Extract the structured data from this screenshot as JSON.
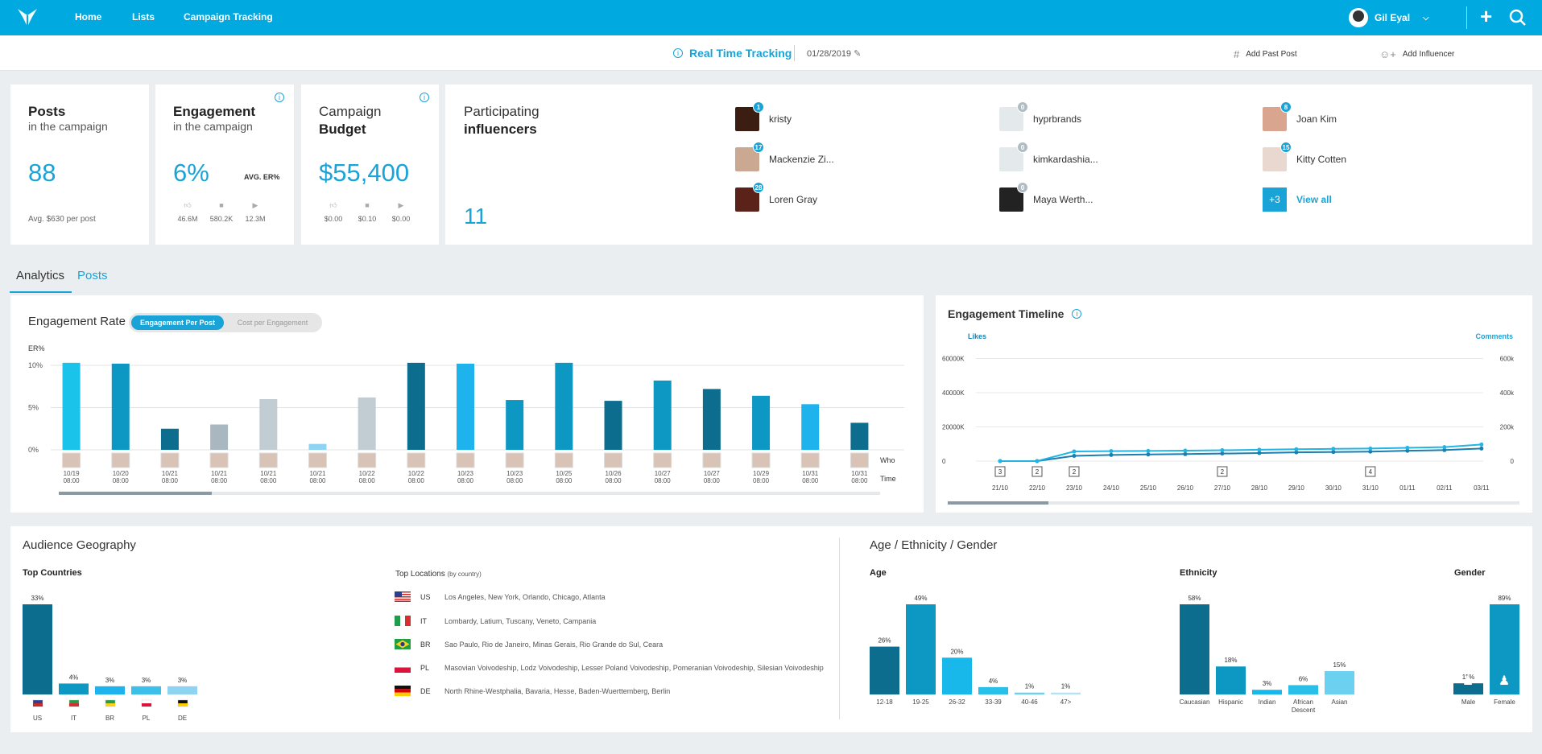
{
  "nav": {
    "links": [
      "Home",
      "Lists",
      "Campaign Tracking"
    ],
    "user_name": "Gil Eyal"
  },
  "subheader": {
    "title": "Real Time Tracking",
    "date": "01/28/2019",
    "add_past_post": "Add Past Post",
    "add_influencer": "Add Influencer"
  },
  "cards": {
    "posts": {
      "title": "Posts",
      "subtitle": "in the campaign",
      "value": "88",
      "note": "Avg. $630 per post"
    },
    "engagement": {
      "title": "Engagement",
      "subtitle": "in the campaign",
      "value": "6%",
      "tag": "AVG. ER%",
      "likes": "46.6M",
      "comments": "580.2K",
      "views": "12.3M"
    },
    "budget": {
      "title_top": "Campaign",
      "title_bold": "Budget",
      "value": "$55,400",
      "likes": "$0.00",
      "comments": "$0.10",
      "views": "$0.00"
    },
    "influencers": {
      "title_top": "Participating",
      "title_bold": "influencers",
      "count": "11",
      "people": [
        {
          "name": "kristy",
          "badge": "1"
        },
        {
          "name": "hyprbrands",
          "badge": "0"
        },
        {
          "name": "Joan Kim",
          "badge": "8"
        },
        {
          "name": "Mackenzie Zi...",
          "badge": "17"
        },
        {
          "name": "kimkardashia...",
          "badge": "0"
        },
        {
          "name": "Kitty Cotten",
          "badge": "15"
        },
        {
          "name": "Loren Gray",
          "badge": "28"
        },
        {
          "name": "Maya Werth...",
          "badge": "0"
        }
      ],
      "more": "+3",
      "view_all": "View all"
    }
  },
  "tabs": [
    "Analytics",
    "Posts"
  ],
  "engagement_rate": {
    "title": "Engagement Rate",
    "toggle_on": "Engagement Per Post",
    "toggle_off": "Cost per Engagement",
    "row_who": "Who",
    "row_time": "Time"
  },
  "engagement_timeline": {
    "title": "Engagement Timeline",
    "left_legend": "Likes",
    "right_legend": "Comments"
  },
  "geography": {
    "title": "Audience Geography",
    "top_countries": "Top Countries",
    "top_locations": "Top Locations",
    "by_country": "(by country)",
    "locations": [
      {
        "code": "US",
        "text": "Los Angeles, New York, Orlando, Chicago, Atlanta"
      },
      {
        "code": "IT",
        "text": "Lombardy, Latium, Tuscany, Veneto, Campania"
      },
      {
        "code": "BR",
        "text": "Sao Paulo, Rio de Janeiro, Minas Gerais, Rio Grande do Sul, Ceara"
      },
      {
        "code": "PL",
        "text": "Masovian Voivodeship, Lodz Voivodeship, Lesser Poland Voivodeship, Pomeranian Voivodeship, Silesian Voivodeship"
      },
      {
        "code": "DE",
        "text": "North Rhine-Westphalia, Bavaria, Hesse, Baden-Wuerttemberg, Berlin"
      }
    ]
  },
  "demographics": {
    "title": "Age / Ethnicity / Gender",
    "age_label": "Age",
    "ethnicity_label": "Ethnicity",
    "gender_label": "Gender"
  },
  "chart_data": [
    {
      "type": "bar",
      "title": "Engagement Rate",
      "ylabel": "ER%",
      "ylim": [
        0,
        10
      ],
      "y_ticks": [
        "0%",
        "5%",
        "10%"
      ],
      "categories": [
        "10/19",
        "10/20",
        "10/21",
        "10/21",
        "10/21",
        "10/21",
        "10/22",
        "10/22",
        "10/23",
        "10/23",
        "10/25",
        "10/26",
        "10/27",
        "10/27",
        "10/29",
        "10/31",
        "10/31"
      ],
      "times": [
        "08:00",
        "08:00",
        "08:00",
        "08:00",
        "08:00",
        "08:00",
        "08:00",
        "08:00",
        "08:00",
        "08:00",
        "08:00",
        "08:00",
        "08:00",
        "08:00",
        "08:00",
        "08:00",
        "08:00"
      ],
      "values": [
        10.3,
        10.2,
        2.5,
        3.0,
        6.0,
        0.7,
        6.2,
        10.3,
        10.2,
        5.9,
        10.3,
        5.8,
        8.2,
        7.2,
        6.4,
        5.4,
        3.2
      ],
      "colors": [
        "#19c3ea",
        "#0d98c4",
        "#0d6d8f",
        "#a9b7c0",
        "#c1cdd3",
        "#8fd3f2",
        "#c1cdd3",
        "#0d6d8f",
        "#1fb3ee",
        "#0d98c4",
        "#0d98c4",
        "#0d6d8f",
        "#0d98c4",
        "#0d6d8f",
        "#0d98c4",
        "#1fb3ee",
        "#0d6d8f"
      ]
    },
    {
      "type": "line",
      "title": "Engagement Timeline",
      "x": [
        "21/10",
        "22/10",
        "23/10",
        "24/10",
        "25/10",
        "26/10",
        "27/10",
        "28/10",
        "29/10",
        "30/10",
        "31/10",
        "01/11",
        "02/11",
        "03/11"
      ],
      "left_axis": {
        "label": "Likes",
        "ticks": [
          "0",
          "20000K",
          "40000K",
          "60000K"
        ],
        "ylim": [
          0,
          70000
        ]
      },
      "right_axis": {
        "label": "Comments",
        "ticks": [
          "0",
          "200k",
          "400k",
          "600k"
        ],
        "ylim": [
          0,
          700
        ]
      },
      "post_counts": [
        "3",
        "2",
        "2",
        "",
        "",
        "",
        "2",
        "",
        "",
        "",
        "4",
        "",
        "",
        ""
      ],
      "series": [
        {
          "name": "Likes",
          "values": [
            0,
            0,
            3000,
            3500,
            3800,
            4000,
            4300,
            4600,
            5000,
            5200,
            5400,
            5900,
            6300,
            7200
          ]
        },
        {
          "name": "Comments",
          "values": [
            0,
            0,
            55,
            57,
            58,
            60,
            62,
            65,
            68,
            70,
            72,
            76,
            80,
            95
          ]
        }
      ]
    },
    {
      "type": "bar",
      "title": "Top Countries",
      "categories": [
        "US",
        "IT",
        "BR",
        "PL",
        "DE"
      ],
      "values": [
        33,
        4,
        3,
        3,
        3
      ],
      "labels": [
        "33%",
        "4%",
        "3%",
        "3%",
        "3%"
      ]
    },
    {
      "type": "bar",
      "title": "Age",
      "categories": [
        "12-18",
        "19-25",
        "26-32",
        "33-39",
        "40-46",
        "47>"
      ],
      "values": [
        26,
        49,
        20,
        4,
        1,
        1
      ],
      "labels": [
        "26%",
        "49%",
        "20%",
        "4%",
        "1%",
        "1%"
      ]
    },
    {
      "type": "bar",
      "title": "Ethnicity",
      "categories": [
        "Caucasian",
        "Hispanic",
        "Indian",
        "African Descent",
        "Asian"
      ],
      "values": [
        58,
        18,
        3,
        6,
        15
      ],
      "labels": [
        "58%",
        "18%",
        "3%",
        "6%",
        "15%"
      ]
    },
    {
      "type": "bar",
      "title": "Gender",
      "categories": [
        "Male",
        "Female"
      ],
      "values": [
        11,
        89
      ],
      "labels": [
        "11%",
        "89%"
      ]
    }
  ]
}
